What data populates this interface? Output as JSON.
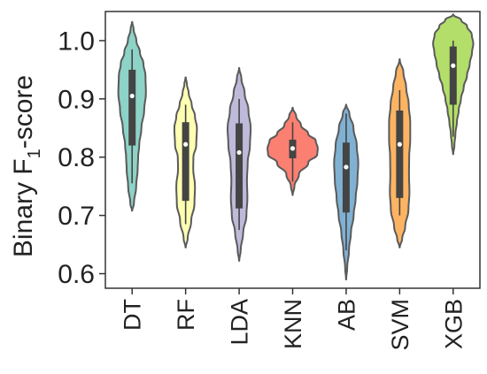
{
  "chart_data": {
    "type": "violin",
    "ylabel": {
      "prefix": "Binary F",
      "subscript": "1",
      "suffix": "-score"
    },
    "xlabel": "",
    "ylim": [
      0.575,
      1.05
    ],
    "yticks": [
      "0.6",
      "0.7",
      "0.8",
      "0.9",
      "1.0"
    ],
    "grid": false,
    "legend": "none",
    "categories": [
      "DT",
      "RF",
      "LDA",
      "KNN",
      "AB",
      "SVM",
      "XGB"
    ],
    "series": [
      {
        "category": "DT",
        "color": "#8dd3c7",
        "median": 0.905,
        "q1": 0.82,
        "q3": 0.95,
        "whisker_low": 0.755,
        "whisker_high": 0.985,
        "density": [
          [
            0.708,
            0.004
          ],
          [
            0.72,
            0.07
          ],
          [
            0.75,
            0.16
          ],
          [
            0.78,
            0.22
          ],
          [
            0.8,
            0.24
          ],
          [
            0.82,
            0.28
          ],
          [
            0.85,
            0.37
          ],
          [
            0.88,
            0.48
          ],
          [
            0.91,
            0.55
          ],
          [
            0.94,
            0.53
          ],
          [
            0.96,
            0.45
          ],
          [
            0.98,
            0.31
          ],
          [
            1.0,
            0.17
          ],
          [
            1.02,
            0.06
          ],
          [
            1.032,
            0.005
          ]
        ]
      },
      {
        "category": "RF",
        "color": "#ffffb3",
        "median": 0.822,
        "q1": 0.725,
        "q3": 0.86,
        "whisker_low": 0.685,
        "whisker_high": 0.89,
        "density": [
          [
            0.645,
            0.004
          ],
          [
            0.66,
            0.08
          ],
          [
            0.69,
            0.22
          ],
          [
            0.72,
            0.35
          ],
          [
            0.75,
            0.37
          ],
          [
            0.78,
            0.3
          ],
          [
            0.8,
            0.31
          ],
          [
            0.82,
            0.42
          ],
          [
            0.85,
            0.45
          ],
          [
            0.87,
            0.37
          ],
          [
            0.89,
            0.24
          ],
          [
            0.91,
            0.12
          ],
          [
            0.925,
            0.05
          ],
          [
            0.937,
            0.004
          ]
        ]
      },
      {
        "category": "LDA",
        "color": "#bebada",
        "median": 0.808,
        "q1": 0.712,
        "q3": 0.858,
        "whisker_low": 0.675,
        "whisker_high": 0.9,
        "density": [
          [
            0.622,
            0.004
          ],
          [
            0.64,
            0.06
          ],
          [
            0.67,
            0.16
          ],
          [
            0.7,
            0.29
          ],
          [
            0.73,
            0.33
          ],
          [
            0.76,
            0.31
          ],
          [
            0.79,
            0.34
          ],
          [
            0.82,
            0.43
          ],
          [
            0.85,
            0.46
          ],
          [
            0.88,
            0.37
          ],
          [
            0.91,
            0.22
          ],
          [
            0.935,
            0.09
          ],
          [
            0.953,
            0.004
          ]
        ]
      },
      {
        "category": "KNN",
        "color": "#fb8072",
        "median": 0.815,
        "q1": 0.798,
        "q3": 0.83,
        "whisker_low": 0.758,
        "whisker_high": 0.86,
        "density": [
          [
            0.735,
            0.004
          ],
          [
            0.75,
            0.07
          ],
          [
            0.77,
            0.25
          ],
          [
            0.79,
            0.62
          ],
          [
            0.805,
            0.98
          ],
          [
            0.815,
            1.0
          ],
          [
            0.828,
            0.92
          ],
          [
            0.84,
            0.62
          ],
          [
            0.855,
            0.33
          ],
          [
            0.87,
            0.14
          ],
          [
            0.885,
            0.004
          ]
        ]
      },
      {
        "category": "AB",
        "color": "#80b1d3",
        "median": 0.783,
        "q1": 0.705,
        "q3": 0.825,
        "whisker_low": 0.64,
        "whisker_high": 0.875,
        "density": [
          [
            0.59,
            0.004
          ],
          [
            0.61,
            0.04
          ],
          [
            0.64,
            0.11
          ],
          [
            0.67,
            0.19
          ],
          [
            0.7,
            0.3
          ],
          [
            0.73,
            0.38
          ],
          [
            0.76,
            0.45
          ],
          [
            0.79,
            0.48
          ],
          [
            0.82,
            0.42
          ],
          [
            0.85,
            0.29
          ],
          [
            0.875,
            0.13
          ],
          [
            0.89,
            0.004
          ]
        ]
      },
      {
        "category": "SVM",
        "color": "#fdb462",
        "median": 0.822,
        "q1": 0.73,
        "q3": 0.88,
        "whisker_low": 0.7,
        "whisker_high": 0.915,
        "density": [
          [
            0.645,
            0.004
          ],
          [
            0.66,
            0.1
          ],
          [
            0.68,
            0.22
          ],
          [
            0.71,
            0.35
          ],
          [
            0.74,
            0.39
          ],
          [
            0.77,
            0.37
          ],
          [
            0.8,
            0.38
          ],
          [
            0.83,
            0.42
          ],
          [
            0.86,
            0.42
          ],
          [
            0.89,
            0.36
          ],
          [
            0.92,
            0.26
          ],
          [
            0.945,
            0.15
          ],
          [
            0.968,
            0.004
          ]
        ]
      },
      {
        "category": "XGB",
        "color": "#b3de69",
        "median": 0.957,
        "q1": 0.89,
        "q3": 0.99,
        "whisker_low": 0.835,
        "whisker_high": 1.0,
        "density": [
          [
            0.805,
            0.004
          ],
          [
            0.82,
            0.05
          ],
          [
            0.84,
            0.09
          ],
          [
            0.86,
            0.15
          ],
          [
            0.88,
            0.22
          ],
          [
            0.9,
            0.31
          ],
          [
            0.92,
            0.42
          ],
          [
            0.94,
            0.55
          ],
          [
            0.96,
            0.66
          ],
          [
            0.98,
            0.75
          ],
          [
            0.995,
            0.8
          ],
          [
            1.01,
            0.74
          ],
          [
            1.025,
            0.55
          ],
          [
            1.035,
            0.32
          ],
          [
            1.045,
            0.004
          ]
        ]
      }
    ]
  }
}
